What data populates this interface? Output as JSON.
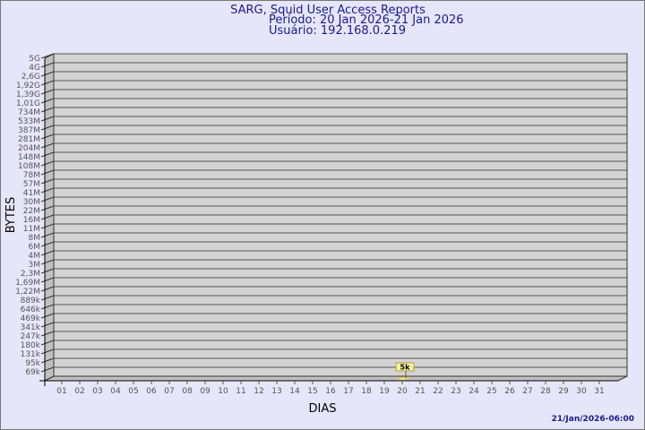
{
  "chart_data": {
    "type": "bar",
    "title": "SARG, Squid User Access Reports",
    "subtitle_period": "Período: 20 Jan 2026-21 Jan 2026",
    "subtitle_user": "Usuário: 192.168.0.219",
    "xlabel": "DIAS",
    "ylabel": "BYTES",
    "footer": "21/Jan/2026-06:00",
    "y_scale": "log",
    "grid": true,
    "y_tick_labels": [
      "5G",
      "4G",
      "2,6G",
      "1,92G",
      "1,39G",
      "1,01G",
      "734M",
      "533M",
      "387M",
      "281M",
      "204M",
      "148M",
      "108M",
      "78M",
      "57M",
      "41M",
      "30M",
      "22M",
      "16M",
      "11M",
      "8M",
      "6M",
      "4M",
      "3M",
      "2,3M",
      "1,69M",
      "1,22M",
      "889k",
      "646k",
      "469k",
      "341k",
      "247k",
      "180k",
      "131k",
      "95k",
      "69k"
    ],
    "categories": [
      "01",
      "02",
      "03",
      "04",
      "05",
      "06",
      "07",
      "08",
      "09",
      "10",
      "11",
      "12",
      "13",
      "14",
      "15",
      "16",
      "17",
      "18",
      "19",
      "20",
      "21",
      "22",
      "23",
      "24",
      "25",
      "26",
      "27",
      "28",
      "29",
      "30",
      "31"
    ],
    "values": [
      null,
      null,
      null,
      null,
      null,
      null,
      null,
      null,
      null,
      null,
      null,
      null,
      null,
      null,
      null,
      null,
      null,
      null,
      null,
      5000,
      null,
      null,
      null,
      null,
      null,
      null,
      null,
      null,
      null,
      null,
      null
    ],
    "data_labels": {
      "20": "5k"
    },
    "colors": {
      "background": "#e6e6fa",
      "wall": "#d3d3d3",
      "side": "#c0c0c0",
      "bar": "#f5e08a",
      "label_box": "#f5f0a0",
      "title": "#1a1a8c"
    }
  }
}
